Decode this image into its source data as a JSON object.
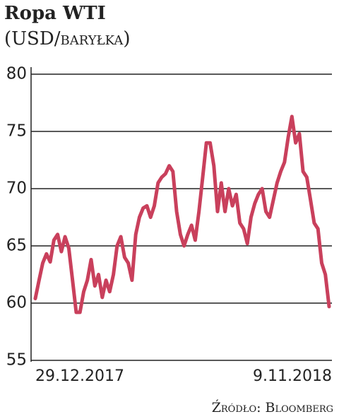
{
  "chart_data": {
    "type": "line",
    "title": "Ropa WTI",
    "subtitle": "(USD/baryłka)",
    "source": "Źródło: Bloomberg",
    "categories": [
      "29.12.2017",
      null,
      null,
      null,
      null,
      null,
      null,
      null,
      null,
      null,
      null,
      null,
      null,
      null,
      null,
      null,
      null,
      null,
      null,
      null,
      null,
      null,
      null,
      null,
      null,
      null,
      null,
      null,
      null,
      null,
      null,
      null,
      null,
      null,
      null,
      null,
      null,
      null,
      null,
      null,
      null,
      null,
      null,
      null,
      null,
      null,
      null,
      null,
      null,
      null,
      null,
      null,
      null,
      null,
      null,
      null,
      null,
      null,
      null,
      null,
      null,
      null,
      null,
      null,
      null,
      null,
      null,
      null,
      null,
      null,
      null,
      null,
      null,
      null,
      null,
      null,
      null,
      null,
      null,
      "9.11.2018"
    ],
    "series": [
      {
        "name": "WTI",
        "color": "#c9405c",
        "values": [
          60.4,
          62,
          63.5,
          64.3,
          63.6,
          65.5,
          66,
          64.5,
          65.8,
          64.8,
          62,
          59.2,
          59.2,
          61,
          62,
          63.8,
          61.5,
          62.5,
          60.5,
          62,
          61,
          62.5,
          65,
          65.8,
          64,
          63.5,
          62,
          66,
          67.5,
          68.3,
          68.5,
          67.5,
          68.5,
          70.5,
          71,
          71.3,
          72,
          71.5,
          68,
          66,
          65,
          66,
          66.8,
          65.5,
          68,
          71,
          74,
          74,
          72,
          68,
          70.5,
          68,
          70,
          68.5,
          69.5,
          67,
          66.5,
          65.2,
          67.5,
          68.7,
          69.5,
          70,
          68,
          67.5,
          69,
          70.5,
          71.5,
          72.3,
          74.5,
          76.3,
          74,
          74.8,
          71.5,
          71,
          69,
          67,
          66.5,
          63.5,
          62.5,
          59.7
        ]
      }
    ],
    "ylim": [
      55,
      80
    ],
    "yticks": [
      55,
      60,
      65,
      70,
      75,
      80
    ],
    "grid": true
  }
}
